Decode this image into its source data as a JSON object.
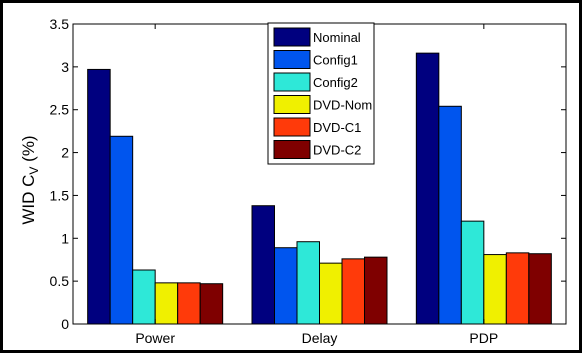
{
  "chart_data": {
    "type": "bar",
    "categories": [
      "Power",
      "Delay",
      "PDP"
    ],
    "series": [
      {
        "name": "Nominal",
        "color": "#00007f",
        "values": [
          2.97,
          1.38,
          3.16
        ]
      },
      {
        "name": "Config1",
        "color": "#0055ee",
        "values": [
          2.19,
          0.89,
          2.54
        ]
      },
      {
        "name": "Config2",
        "color": "#2ee8d8",
        "values": [
          0.63,
          0.96,
          1.2
        ]
      },
      {
        "name": "DVD-Nom",
        "color": "#f0f000",
        "values": [
          0.48,
          0.71,
          0.81
        ]
      },
      {
        "name": "DVD-C1",
        "color": "#ff3a0a",
        "values": [
          0.48,
          0.76,
          0.83
        ]
      },
      {
        "name": "DVD-C2",
        "color": "#7f0000",
        "values": [
          0.47,
          0.78,
          0.82
        ]
      }
    ],
    "ylabel": "WID  C",
    "ylabel_sub": "V",
    "ylabel_unit": " (%)",
    "ylim": [
      0,
      3.5
    ],
    "yticks": [
      "0",
      "0.5",
      "1",
      "1.5",
      "2",
      "2.5",
      "3",
      "3.5"
    ],
    "grid": false,
    "legend": "top-center"
  }
}
